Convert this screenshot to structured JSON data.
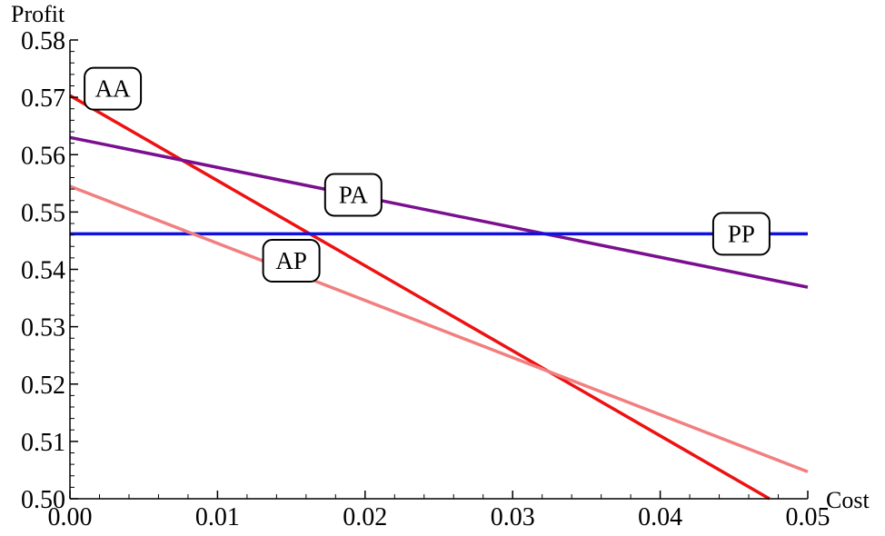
{
  "chart_data": {
    "type": "line",
    "xlabel": "Cost",
    "ylabel": "Profit",
    "xlim": [
      0,
      0.05
    ],
    "ylim": [
      0.5,
      0.58
    ],
    "x_ticks": [
      "0.00",
      "0.01",
      "0.02",
      "0.03",
      "0.04",
      "0.05"
    ],
    "y_ticks": [
      "0.50",
      "0.51",
      "0.52",
      "0.53",
      "0.54",
      "0.55",
      "0.56",
      "0.57",
      "0.58"
    ],
    "grid": false,
    "series": [
      {
        "name": "AA",
        "color": "#ee1111",
        "x": [
          0,
          0.0474
        ],
        "y": [
          0.5703,
          0.5
        ]
      },
      {
        "name": "PA",
        "color": "#7a0f8f",
        "x": [
          0,
          0.05
        ],
        "y": [
          0.563,
          0.5369
        ]
      },
      {
        "name": "PP",
        "color": "#1111dd",
        "x": [
          0,
          0.05
        ],
        "y": [
          0.5462,
          0.5462
        ]
      },
      {
        "name": "AP",
        "color": "#f27f7f",
        "x": [
          0,
          0.05
        ],
        "y": [
          0.5545,
          0.5047
        ]
      }
    ],
    "annotations": [
      {
        "text": "AA",
        "x": 0.0029,
        "y": 0.5715
      },
      {
        "text": "PA",
        "x": 0.0192,
        "y": 0.553
      },
      {
        "text": "PP",
        "x": 0.0455,
        "y": 0.5462
      },
      {
        "text": "AP",
        "x": 0.015,
        "y": 0.5415
      }
    ]
  }
}
